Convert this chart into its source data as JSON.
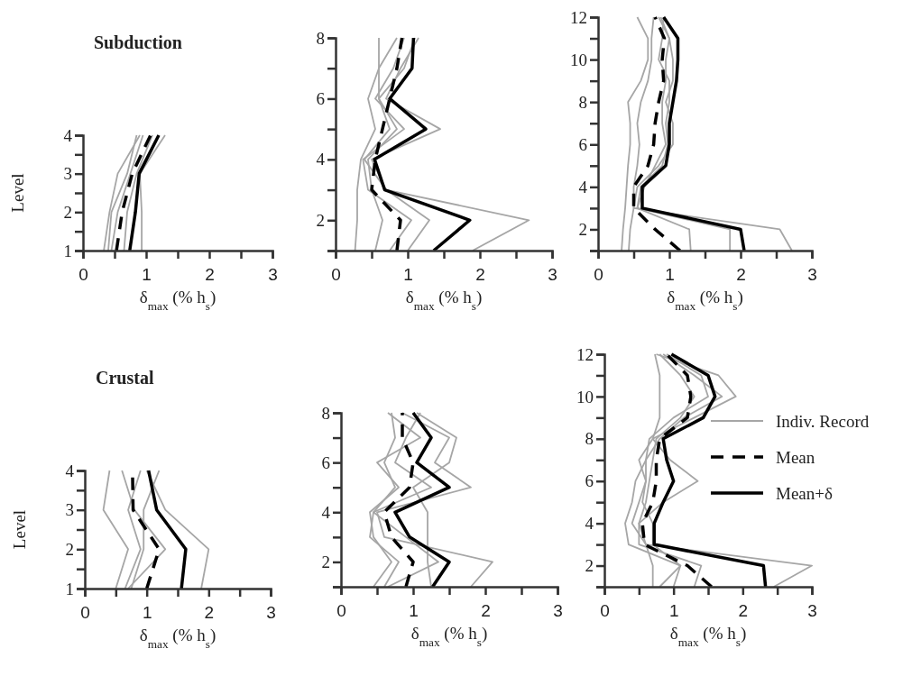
{
  "chart_data": [
    {
      "type": "line",
      "title": "Subduction",
      "xlabel": "δ$_{max}$ (% h$_{s}$)",
      "ylabel": "Level",
      "xlim": [
        0,
        3
      ],
      "ylim": [
        1,
        4
      ],
      "xticks": [
        0,
        {
          "value": 0.5,
          "label": null
        },
        1,
        {
          "value": 1.5,
          "label": null
        },
        2,
        {
          "value": 2.5,
          "label": null
        },
        3
      ],
      "yticks": [
        1,
        {
          "value": 1.5,
          "label": null
        },
        2,
        {
          "value": 2.5,
          "label": null
        },
        3,
        {
          "value": 3.5,
          "label": null
        },
        4
      ],
      "series": [
        {
          "color": "#a6a6a6",
          "x": [
            0.33,
            0.42,
            0.55,
            0.9
          ],
          "values": [
            1,
            2,
            3,
            4
          ]
        },
        {
          "color": "#a6a6a6",
          "x": [
            0.4,
            0.45,
            0.7,
            0.85
          ],
          "values": [
            1,
            2,
            3,
            4
          ]
        },
        {
          "color": "#a6a6a6",
          "x": [
            0.65,
            0.7,
            0.85,
            1.1
          ],
          "values": [
            1,
            2,
            3,
            4
          ]
        },
        {
          "color": "#a6a6a6",
          "x": [
            0.93,
            0.93,
            0.9,
            1.3
          ],
          "values": [
            1,
            2,
            3,
            4
          ]
        },
        {
          "color": "#a6a6a6",
          "x": [
            0.45,
            0.55,
            0.75,
            0.95
          ],
          "values": [
            1,
            2,
            3,
            4
          ]
        },
        {
          "color": "#000000",
          "line_style": "dashed",
          "x": [
            0.53,
            0.62,
            0.78,
            1.07
          ],
          "values": [
            1,
            2,
            3,
            4
          ]
        },
        {
          "color": "#000000",
          "line_style": "solid",
          "x": [
            0.74,
            0.83,
            0.89,
            1.2
          ],
          "values": [
            1,
            2,
            3,
            4
          ]
        }
      ]
    },
    {
      "type": "line",
      "xlabel": "δ$_{max}$ (% h$_{s}$)",
      "xlim": [
        0,
        3
      ],
      "ylim": [
        1,
        8
      ],
      "xticks": [
        0,
        {
          "value": 0.5,
          "label": null
        },
        1,
        {
          "value": 1.5,
          "label": null
        },
        2,
        {
          "value": 2.5,
          "label": null
        },
        3
      ],
      "yticks": [
        {
          "value": 1,
          "label": null
        },
        2,
        {
          "value": 3,
          "label": null
        },
        4,
        {
          "value": 5,
          "label": null
        },
        6,
        {
          "value": 7,
          "label": null
        },
        8
      ],
      "series": [
        {
          "color": "#a6a6a6",
          "x": [
            1.9,
            2.68,
            0.7,
            0.4,
            0.75,
            0.6,
            0.95,
            1.1
          ],
          "values": [
            1,
            2,
            3,
            4,
            5,
            6,
            7,
            8
          ]
        },
        {
          "color": "#a6a6a6",
          "x": [
            0.27,
            0.3,
            0.3,
            0.35,
            0.55,
            0.45,
            0.6,
            0.6
          ],
          "values": [
            1,
            2,
            3,
            4,
            5,
            6,
            7,
            8
          ]
        },
        {
          "color": "#a6a6a6",
          "x": [
            0.55,
            0.65,
            0.5,
            0.45,
            0.85,
            0.6,
            0.6,
            0.85
          ],
          "values": [
            1,
            2,
            3,
            4,
            5,
            6,
            7,
            8
          ]
        },
        {
          "color": "#a6a6a6",
          "x": [
            1.0,
            1.3,
            0.7,
            0.5,
            1.45,
            0.7,
            0.9,
            1.15
          ],
          "values": [
            1,
            2,
            3,
            4,
            5,
            6,
            7,
            8
          ]
        },
        {
          "color": "#a6a6a6",
          "x": [
            0.75,
            1.05,
            0.45,
            0.38,
            0.95,
            0.55,
            0.8,
            0.95
          ],
          "values": [
            1,
            2,
            3,
            4,
            5,
            6,
            7,
            8
          ]
        },
        {
          "color": "#000000",
          "line_style": "dashed",
          "x": [
            0.85,
            0.9,
            0.5,
            0.55,
            0.65,
            0.75,
            0.85,
            0.92
          ],
          "values": [
            1,
            2,
            3,
            4,
            5,
            6,
            7,
            8
          ]
        },
        {
          "color": "#000000",
          "line_style": "solid",
          "x": [
            1.36,
            1.86,
            0.68,
            0.54,
            1.25,
            0.75,
            1.06,
            1.08
          ],
          "values": [
            1,
            2,
            3,
            4,
            5,
            6,
            7,
            8
          ]
        }
      ]
    },
    {
      "type": "line",
      "xlabel": "δ$_{max}$ (% h$_{s}$)",
      "xlim": [
        0,
        3
      ],
      "ylim": [
        1,
        12
      ],
      "xticks": [
        0,
        {
          "value": 0.5,
          "label": null
        },
        1,
        {
          "value": 1.5,
          "label": null
        },
        2,
        {
          "value": 2.5,
          "label": null
        },
        3
      ],
      "yticks": [
        {
          "value": 1,
          "label": null
        },
        2,
        {
          "value": 3,
          "label": null
        },
        4,
        {
          "value": 5,
          "label": null
        },
        6,
        {
          "value": 7,
          "label": null
        },
        8,
        {
          "value": 9,
          "label": null
        },
        10,
        {
          "value": 11,
          "label": null
        },
        12
      ],
      "series": [
        {
          "color": "#a6a6a6",
          "x": [
            2.72,
            2.55,
            0.5,
            0.55,
            0.85,
            1.05,
            1.05,
            0.95,
            1.05,
            1.05,
            1.0,
            0.88
          ],
          "values": [
            1,
            2,
            3,
            4,
            5,
            6,
            7,
            8,
            9,
            10,
            11,
            12
          ]
        },
        {
          "color": "#a6a6a6",
          "x": [
            0.33,
            0.35,
            0.38,
            0.4,
            0.42,
            0.45,
            0.45,
            0.42,
            0.6,
            0.7,
            0.7,
            0.55
          ],
          "values": [
            1,
            2,
            3,
            4,
            5,
            6,
            7,
            8,
            9,
            10,
            11,
            12
          ]
        },
        {
          "color": "#a6a6a6",
          "x": [
            0.43,
            0.45,
            0.5,
            0.5,
            0.55,
            0.58,
            0.55,
            0.6,
            0.7,
            0.75,
            0.75,
            0.78
          ],
          "values": [
            1,
            2,
            3,
            4,
            5,
            6,
            7,
            8,
            9,
            10,
            11,
            12
          ]
        },
        {
          "color": "#a6a6a6",
          "x": [
            1.3,
            1.28,
            0.55,
            0.65,
            0.8,
            0.95,
            0.9,
            0.9,
            0.95,
            0.95,
            1.0,
            0.85
          ],
          "values": [
            1,
            2,
            3,
            4,
            5,
            6,
            7,
            8,
            9,
            10,
            11,
            12
          ]
        },
        {
          "color": "#a6a6a6",
          "x": [
            1.85,
            1.85,
            0.55,
            0.6,
            0.9,
            0.98,
            0.95,
            1.0,
            1.0,
            0.85,
            0.9,
            0.92
          ],
          "values": [
            1,
            2,
            3,
            4,
            5,
            6,
            7,
            8,
            9,
            10,
            11,
            12
          ]
        },
        {
          "color": "#000000",
          "line_style": "dashed",
          "x": [
            1.15,
            0.8,
            0.5,
            0.5,
            0.7,
            0.78,
            0.8,
            0.85,
            0.92,
            0.9,
            0.93,
            0.8
          ],
          "values": [
            1,
            2,
            3,
            4,
            5,
            6,
            7,
            8,
            9,
            10,
            11,
            12
          ]
        },
        {
          "color": "#000000",
          "line_style": "solid",
          "x": [
            2.05,
            2.0,
            0.62,
            0.62,
            0.95,
            1.0,
            1.0,
            1.05,
            1.1,
            1.12,
            1.12,
            0.92
          ],
          "values": [
            1,
            2,
            3,
            4,
            5,
            6,
            7,
            8,
            9,
            10,
            11,
            12
          ]
        }
      ]
    },
    {
      "type": "line",
      "title": "Crustal",
      "xlabel": "δ$_{max}$ (% h$_{s}$)",
      "ylabel": "Level",
      "xlim": [
        0,
        3
      ],
      "ylim": [
        1,
        4
      ],
      "xticks": [
        0,
        {
          "value": 0.5,
          "label": null
        },
        1,
        {
          "value": 1.5,
          "label": null
        },
        2,
        {
          "value": 2.5,
          "label": null
        },
        3
      ],
      "yticks": [
        1,
        {
          "value": 1.5,
          "label": null
        },
        2,
        {
          "value": 2.5,
          "label": null
        },
        3,
        {
          "value": 3.5,
          "label": null
        },
        4
      ],
      "series": [
        {
          "color": "#a6a6a6",
          "x": [
            1.88,
            2.0,
            1.3,
            1.0
          ],
          "values": [
            1,
            2,
            3,
            4
          ]
        },
        {
          "color": "#a6a6a6",
          "x": [
            0.5,
            0.7,
            0.3,
            0.4
          ],
          "values": [
            1,
            2,
            3,
            4
          ]
        },
        {
          "color": "#a6a6a6",
          "x": [
            0.7,
            1.3,
            0.8,
            0.6
          ],
          "values": [
            1,
            2,
            3,
            4
          ]
        },
        {
          "color": "#a6a6a6",
          "x": [
            0.75,
            0.95,
            0.95,
            1.2
          ],
          "values": [
            1,
            2,
            3,
            4
          ]
        },
        {
          "color": "#a6a6a6",
          "x": [
            0.65,
            0.9,
            0.7,
            0.9
          ],
          "values": [
            1,
            2,
            3,
            4
          ]
        },
        {
          "color": "#000000",
          "line_style": "dashed",
          "x": [
            1.0,
            1.2,
            0.78,
            0.77
          ],
          "values": [
            1,
            2,
            3,
            4
          ]
        },
        {
          "color": "#000000",
          "line_style": "solid",
          "x": [
            1.56,
            1.63,
            1.16,
            1.03
          ],
          "values": [
            1,
            2,
            3,
            4
          ]
        }
      ]
    },
    {
      "type": "line",
      "xlabel": "δ$_{max}$ (% h$_{s}$)",
      "xlim": [
        0,
        3
      ],
      "ylim": [
        1,
        8
      ],
      "xticks": [
        0,
        {
          "value": 0.5,
          "label": null
        },
        1,
        {
          "value": 1.5,
          "label": null
        },
        2,
        {
          "value": 2.5,
          "label": null
        },
        3
      ],
      "yticks": [
        {
          "value": 1,
          "label": null
        },
        2,
        {
          "value": 3,
          "label": null
        },
        4,
        {
          "value": 5,
          "label": null
        },
        6,
        {
          "value": 7,
          "label": null
        },
        8
      ],
      "series": [
        {
          "color": "#a6a6a6",
          "x": [
            1.8,
            2.1,
            0.6,
            0.5,
            1.8,
            1.3,
            1.5,
            0.85
          ],
          "values": [
            1,
            2,
            3,
            4,
            5,
            6,
            7,
            8
          ]
        },
        {
          "color": "#a6a6a6",
          "x": [
            0.45,
            0.7,
            0.45,
            0.4,
            0.8,
            0.5,
            1.1,
            0.65
          ],
          "values": [
            1,
            2,
            3,
            4,
            5,
            6,
            7,
            8
          ]
        },
        {
          "color": "#a6a6a6",
          "x": [
            0.65,
            1.35,
            0.9,
            0.45,
            1.25,
            0.75,
            0.9,
            1.1
          ],
          "values": [
            1,
            2,
            3,
            4,
            5,
            6,
            7,
            8
          ]
        },
        {
          "color": "#a6a6a6",
          "x": [
            1.25,
            1.2,
            1.2,
            1.2,
            1.0,
            1.5,
            1.6,
            1.05
          ],
          "values": [
            1,
            2,
            3,
            4,
            5,
            6,
            7,
            8
          ]
        },
        {
          "color": "#a6a6a6",
          "x": [
            0.6,
            0.8,
            0.4,
            0.45,
            0.75,
            0.6,
            0.75,
            0.7
          ],
          "values": [
            1,
            2,
            3,
            4,
            5,
            6,
            7,
            8
          ]
        },
        {
          "color": "#000000",
          "line_style": "dashed",
          "x": [
            0.9,
            1.0,
            0.7,
            0.6,
            0.95,
            1.0,
            0.85,
            0.85
          ],
          "values": [
            1,
            2,
            3,
            4,
            5,
            6,
            7,
            8
          ]
        },
        {
          "color": "#000000",
          "line_style": "solid",
          "x": [
            1.27,
            1.5,
            0.95,
            0.75,
            1.5,
            1.05,
            1.25,
            1.0
          ],
          "values": [
            1,
            2,
            3,
            4,
            5,
            6,
            7,
            8
          ]
        }
      ]
    },
    {
      "type": "line",
      "xlabel": "δ$_{max}$ (% h$_{s}$)",
      "xlim": [
        0,
        3
      ],
      "ylim": [
        1,
        12
      ],
      "legend": "right",
      "xticks": [
        0,
        {
          "value": 0.5,
          "label": null
        },
        1,
        {
          "value": 1.5,
          "label": null
        },
        2,
        {
          "value": 2.5,
          "label": null
        },
        3
      ],
      "yticks": [
        {
          "value": 1,
          "label": null
        },
        2,
        {
          "value": 3,
          "label": null
        },
        4,
        {
          "value": 5,
          "label": null
        },
        6,
        {
          "value": 7,
          "label": null
        },
        8,
        {
          "value": 9,
          "label": null
        },
        10,
        {
          "value": 11,
          "label": null
        },
        12
      ],
      "series": [
        {
          "name": "Indiv. Record",
          "color": "#a6a6a6",
          "x": [
            2.45,
            3.0,
            0.6,
            0.5,
            0.85,
            1.35,
            0.95,
            0.7,
            1.3,
            1.9,
            1.65,
            0.75
          ],
          "values": [
            1,
            2,
            3,
            4,
            5,
            6,
            7,
            8,
            9,
            10,
            11,
            12
          ]
        },
        {
          "color": "#a6a6a6",
          "x": [
            0.7,
            0.7,
            0.6,
            0.4,
            0.5,
            0.6,
            0.5,
            0.7,
            0.8,
            0.8,
            0.8,
            0.73
          ],
          "values": [
            1,
            2,
            3,
            4,
            5,
            6,
            7,
            8,
            9,
            10,
            11,
            12
          ]
        },
        {
          "color": "#a6a6a6",
          "x": [
            1.0,
            1.1,
            0.35,
            0.3,
            0.4,
            0.45,
            0.6,
            0.65,
            1.0,
            1.5,
            1.4,
            0.9
          ],
          "values": [
            1,
            2,
            3,
            4,
            5,
            6,
            7,
            8,
            9,
            10,
            11,
            12
          ]
        },
        {
          "color": "#a6a6a6",
          "x": [
            1.3,
            1.4,
            0.5,
            0.5,
            0.6,
            0.65,
            0.7,
            0.75,
            1.1,
            1.3,
            1.1,
            0.8
          ],
          "values": [
            1,
            2,
            3,
            4,
            5,
            6,
            7,
            8,
            9,
            10,
            11,
            12
          ]
        },
        {
          "color": "#a6a6a6",
          "x": [
            0.8,
            1.1,
            0.7,
            0.7,
            0.55,
            0.6,
            0.6,
            0.8,
            1.15,
            1.7,
            1.3,
            0.85
          ],
          "values": [
            1,
            2,
            3,
            4,
            5,
            6,
            7,
            8,
            9,
            10,
            11,
            12
          ]
        },
        {
          "name": "Mean",
          "color": "#000000",
          "line_style": "dashed",
          "x": [
            1.55,
            1.2,
            0.58,
            0.55,
            0.7,
            0.75,
            0.75,
            0.8,
            1.2,
            1.25,
            1.2,
            0.9
          ],
          "values": [
            1,
            2,
            3,
            4,
            5,
            6,
            7,
            8,
            9,
            10,
            11,
            12
          ]
        },
        {
          "name": "Mean+δ",
          "color": "#000000",
          "line_style": "solid",
          "x": [
            2.33,
            2.3,
            0.72,
            0.72,
            0.85,
            1.0,
            0.9,
            0.85,
            1.43,
            1.6,
            1.5,
            0.97
          ],
          "values": [
            1,
            2,
            3,
            4,
            5,
            6,
            7,
            8,
            9,
            10,
            11,
            12
          ]
        }
      ]
    }
  ]
}
